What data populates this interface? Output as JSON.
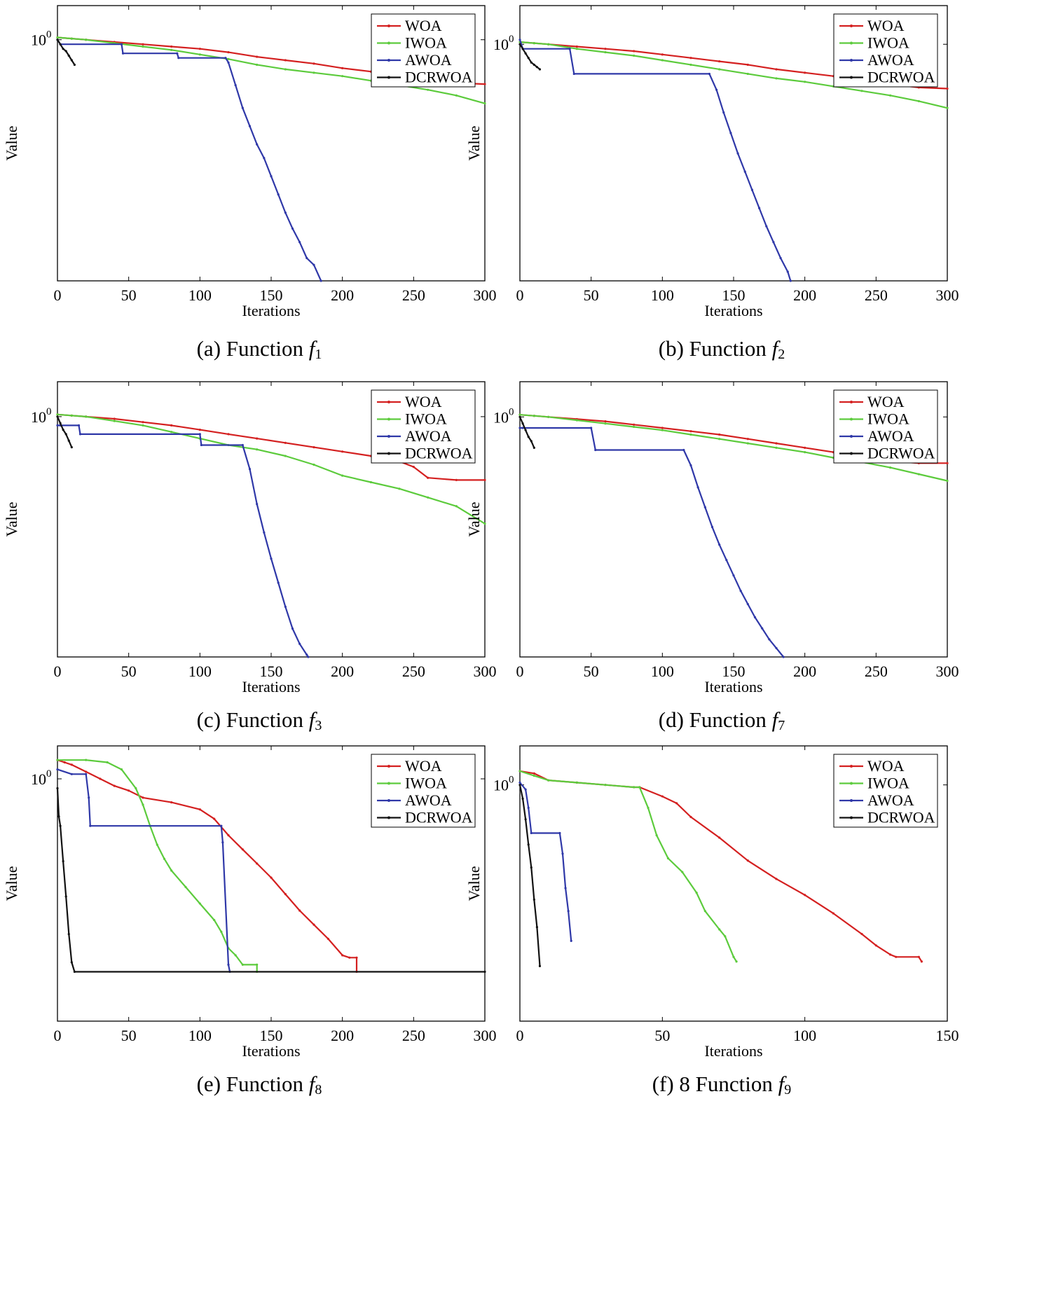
{
  "colors": {
    "WOA": "#d42020",
    "IWOA": "#5ccb3c",
    "AWOA": "#2f38a8",
    "DCRWOA": "#111111"
  },
  "chart_data": [
    {
      "id": "a",
      "type": "line",
      "caption": {
        "prefix": "(a) Function ",
        "f": "f",
        "sub": "1"
      },
      "xlabel": "Iterations",
      "ylabel": "Value",
      "xlim": [
        0,
        300
      ],
      "xticks": [
        0,
        50,
        100,
        150,
        200,
        250,
        300
      ],
      "ylim": [
        -1.06,
        0.15
      ],
      "ytick_label": "10",
      "ytick_exp": "0",
      "series": [
        {
          "name": "WOA",
          "x": [
            0,
            10,
            20,
            40,
            60,
            80,
            100,
            120,
            140,
            160,
            180,
            200,
            220,
            240,
            260,
            280,
            300
          ],
          "y": [
            0.01,
            0.005,
            0.0,
            -0.01,
            -0.02,
            -0.03,
            -0.04,
            -0.055,
            -0.075,
            -0.09,
            -0.105,
            -0.125,
            -0.14,
            -0.155,
            -0.17,
            -0.19,
            -0.195
          ]
        },
        {
          "name": "IWOA",
          "x": [
            0,
            10,
            20,
            40,
            60,
            80,
            100,
            120,
            140,
            160,
            180,
            200,
            220,
            240,
            260,
            280,
            300
          ],
          "y": [
            0.01,
            0.005,
            0.0,
            -0.015,
            -0.03,
            -0.045,
            -0.065,
            -0.085,
            -0.11,
            -0.13,
            -0.145,
            -0.16,
            -0.18,
            -0.2,
            -0.22,
            -0.245,
            -0.28
          ]
        },
        {
          "name": "AWOA",
          "x": [
            0,
            2,
            45,
            46,
            84,
            85,
            118,
            120,
            125,
            130,
            135,
            140,
            145,
            150,
            155,
            160,
            165,
            170,
            175,
            180,
            185
          ],
          "y": [
            0.0,
            -0.02,
            -0.02,
            -0.06,
            -0.06,
            -0.08,
            -0.08,
            -0.1,
            -0.2,
            -0.3,
            -0.38,
            -0.46,
            -0.52,
            -0.6,
            -0.68,
            -0.76,
            -0.83,
            -0.89,
            -0.96,
            -0.99,
            -1.06
          ]
        },
        {
          "name": "DCRWOA",
          "x": [
            0,
            2,
            4,
            6,
            8,
            10,
            12
          ],
          "y": [
            0.0,
            -0.02,
            -0.04,
            -0.05,
            -0.07,
            -0.09,
            -0.11
          ]
        }
      ]
    },
    {
      "id": "b",
      "type": "line",
      "caption": {
        "prefix": "(b) Function ",
        "f": "f",
        "sub": "2"
      },
      "xlabel": "Iterations",
      "ylabel": "Value",
      "xlim": [
        0,
        300
      ],
      "xticks": [
        0,
        50,
        100,
        150,
        200,
        250,
        300
      ],
      "ylim": [
        -1.04,
        0.17
      ],
      "ytick_label": "10",
      "ytick_exp": "0",
      "series": [
        {
          "name": "WOA",
          "x": [
            0,
            10,
            20,
            40,
            60,
            80,
            100,
            120,
            140,
            160,
            180,
            200,
            220,
            240,
            260,
            280,
            300
          ],
          "y": [
            0.01,
            0.005,
            0.0,
            -0.01,
            -0.02,
            -0.03,
            -0.045,
            -0.06,
            -0.075,
            -0.09,
            -0.11,
            -0.125,
            -0.14,
            -0.155,
            -0.175,
            -0.19,
            -0.195
          ]
        },
        {
          "name": "IWOA",
          "x": [
            0,
            10,
            20,
            40,
            60,
            80,
            100,
            120,
            140,
            160,
            180,
            200,
            220,
            240,
            260,
            280,
            300
          ],
          "y": [
            0.01,
            0.005,
            0.0,
            -0.02,
            -0.035,
            -0.05,
            -0.07,
            -0.09,
            -0.11,
            -0.13,
            -0.15,
            -0.165,
            -0.185,
            -0.205,
            -0.225,
            -0.25,
            -0.28
          ]
        },
        {
          "name": "AWOA",
          "x": [
            0,
            2,
            35,
            38,
            133,
            138,
            143,
            148,
            153,
            158,
            163,
            168,
            173,
            178,
            183,
            188,
            190
          ],
          "y": [
            0.02,
            -0.02,
            -0.02,
            -0.13,
            -0.13,
            -0.2,
            -0.3,
            -0.39,
            -0.48,
            -0.56,
            -0.64,
            -0.72,
            -0.8,
            -0.87,
            -0.94,
            -1.0,
            -1.04
          ]
        },
        {
          "name": "DCRWOA",
          "x": [
            0,
            2,
            4,
            6,
            8,
            10,
            12,
            14
          ],
          "y": [
            0.0,
            -0.02,
            -0.04,
            -0.06,
            -0.08,
            -0.09,
            -0.1,
            -0.11
          ]
        }
      ]
    },
    {
      "id": "c",
      "type": "line",
      "caption": {
        "prefix": "(c) Function ",
        "f": "f",
        "sub": "3"
      },
      "xlabel": "Iterations",
      "ylabel": "Value",
      "xlim": [
        0,
        300
      ],
      "xticks": [
        0,
        50,
        100,
        150,
        200,
        250,
        300
      ],
      "ylim": [
        -1.1,
        0.16
      ],
      "ytick_label": "10",
      "ytick_exp": "0",
      "series": [
        {
          "name": "WOA",
          "x": [
            0,
            10,
            20,
            40,
            60,
            80,
            100,
            120,
            140,
            160,
            180,
            200,
            220,
            240,
            250,
            260,
            280,
            300
          ],
          "y": [
            0.01,
            0.005,
            0.0,
            -0.01,
            -0.025,
            -0.04,
            -0.06,
            -0.08,
            -0.1,
            -0.12,
            -0.14,
            -0.16,
            -0.18,
            -0.205,
            -0.23,
            -0.28,
            -0.29,
            -0.29
          ]
        },
        {
          "name": "IWOA",
          "x": [
            0,
            10,
            20,
            40,
            60,
            80,
            100,
            120,
            140,
            160,
            180,
            200,
            220,
            240,
            260,
            280,
            300
          ],
          "y": [
            0.01,
            0.005,
            0.0,
            -0.02,
            -0.04,
            -0.07,
            -0.1,
            -0.13,
            -0.15,
            -0.18,
            -0.22,
            -0.27,
            -0.3,
            -0.33,
            -0.37,
            -0.41,
            -0.49
          ]
        },
        {
          "name": "AWOA",
          "x": [
            0,
            2,
            15,
            16,
            100,
            101,
            130,
            135,
            140,
            145,
            150,
            155,
            160,
            165,
            170,
            175,
            176
          ],
          "y": [
            -0.04,
            -0.04,
            -0.04,
            -0.08,
            -0.08,
            -0.13,
            -0.13,
            -0.24,
            -0.4,
            -0.53,
            -0.65,
            -0.76,
            -0.87,
            -0.97,
            -1.04,
            -1.09,
            -1.1
          ]
        },
        {
          "name": "DCRWOA",
          "x": [
            0,
            2,
            4,
            6,
            8,
            10
          ],
          "y": [
            0.0,
            -0.03,
            -0.06,
            -0.08,
            -0.11,
            -0.14
          ]
        }
      ]
    },
    {
      "id": "d",
      "type": "line",
      "caption": {
        "prefix": "(d) Function ",
        "f": "f",
        "sub": "7"
      },
      "xlabel": "Iterations",
      "ylabel": "Value",
      "xlim": [
        0,
        300
      ],
      "xticks": [
        0,
        50,
        100,
        150,
        200,
        250,
        300
      ],
      "ylim": [
        -1.09,
        0.16
      ],
      "ytick_label": "10",
      "ytick_exp": "0",
      "series": [
        {
          "name": "WOA",
          "x": [
            0,
            10,
            20,
            40,
            60,
            80,
            100,
            120,
            140,
            160,
            180,
            200,
            220,
            240,
            260,
            280,
            300
          ],
          "y": [
            0.01,
            0.005,
            0.0,
            -0.01,
            -0.02,
            -0.035,
            -0.05,
            -0.065,
            -0.08,
            -0.1,
            -0.12,
            -0.14,
            -0.16,
            -0.18,
            -0.2,
            -0.21,
            -0.21
          ]
        },
        {
          "name": "IWOA",
          "x": [
            0,
            10,
            20,
            40,
            60,
            80,
            100,
            120,
            140,
            160,
            180,
            200,
            220,
            240,
            260,
            280,
            300
          ],
          "y": [
            0.01,
            0.005,
            0.0,
            -0.015,
            -0.03,
            -0.045,
            -0.06,
            -0.08,
            -0.1,
            -0.12,
            -0.14,
            -0.16,
            -0.185,
            -0.205,
            -0.23,
            -0.26,
            -0.29
          ]
        },
        {
          "name": "AWOA",
          "x": [
            0,
            2,
            50,
            53,
            115,
            120,
            125,
            130,
            135,
            140,
            145,
            150,
            155,
            160,
            165,
            170,
            175,
            180,
            185
          ],
          "y": [
            -0.05,
            -0.05,
            -0.05,
            -0.15,
            -0.15,
            -0.22,
            -0.32,
            -0.41,
            -0.5,
            -0.58,
            -0.65,
            -0.72,
            -0.79,
            -0.85,
            -0.91,
            -0.96,
            -1.01,
            -1.05,
            -1.09
          ]
        },
        {
          "name": "DCRWOA",
          "x": [
            0,
            2,
            4,
            6,
            8,
            10
          ],
          "y": [
            0.0,
            -0.03,
            -0.06,
            -0.09,
            -0.11,
            -0.14
          ]
        }
      ]
    },
    {
      "id": "e",
      "type": "line",
      "caption": {
        "prefix": "(e) Function ",
        "f": "f",
        "sub": "8"
      },
      "xlabel": "Iterations",
      "ylabel": "Value",
      "xlim": [
        0,
        300
      ],
      "xticks": [
        0,
        50,
        100,
        150,
        200,
        250,
        300
      ],
      "ylim": [
        -1.03,
        0.14
      ],
      "ytick_label": "10",
      "ytick_exp": "0",
      "series": [
        {
          "name": "WOA",
          "x": [
            0,
            5,
            10,
            20,
            30,
            40,
            50,
            60,
            80,
            100,
            110,
            120,
            130,
            140,
            150,
            160,
            170,
            180,
            190,
            200,
            205,
            210,
            210
          ],
          "y": [
            0.08,
            0.07,
            0.06,
            0.03,
            0.0,
            -0.03,
            -0.05,
            -0.08,
            -0.1,
            -0.13,
            -0.17,
            -0.24,
            -0.3,
            -0.36,
            -0.42,
            -0.49,
            -0.56,
            -0.62,
            -0.68,
            -0.75,
            -0.76,
            -0.76,
            -0.82
          ]
        },
        {
          "name": "IWOA",
          "x": [
            0,
            20,
            35,
            45,
            55,
            60,
            65,
            70,
            75,
            80,
            90,
            100,
            110,
            115,
            120,
            125,
            130,
            140,
            140
          ],
          "y": [
            0.08,
            0.08,
            0.07,
            0.04,
            -0.04,
            -0.11,
            -0.2,
            -0.28,
            -0.34,
            -0.39,
            -0.46,
            -0.53,
            -0.6,
            -0.65,
            -0.72,
            -0.75,
            -0.79,
            -0.79,
            -0.82
          ]
        },
        {
          "name": "AWOA",
          "x": [
            0,
            10,
            20,
            22,
            23,
            115,
            116,
            120,
            121
          ],
          "y": [
            0.04,
            0.02,
            0.02,
            -0.08,
            -0.2,
            -0.2,
            -0.27,
            -0.79,
            -0.82
          ]
        },
        {
          "name": "DCRWOA",
          "x": [
            0,
            1,
            2,
            4,
            6,
            8,
            10,
            12,
            300
          ],
          "y": [
            -0.04,
            -0.16,
            -0.2,
            -0.35,
            -0.5,
            -0.66,
            -0.78,
            -0.82,
            -0.82
          ]
        }
      ]
    },
    {
      "id": "f",
      "type": "line",
      "caption": {
        "prefix": "(f) 8 Function ",
        "f": "f",
        "sub": "9"
      },
      "xlabel": "Iterations",
      "ylabel": "Value",
      "xlim": [
        0,
        150
      ],
      "xticks": [
        0,
        50,
        100,
        150
      ],
      "ylim": [
        -1.03,
        0.17
      ],
      "ytick_label": "10",
      "ytick_exp": "0",
      "series": [
        {
          "name": "WOA",
          "x": [
            0,
            5,
            10,
            20,
            30,
            40,
            42,
            50,
            55,
            60,
            70,
            80,
            90,
            100,
            110,
            120,
            125,
            130,
            132,
            140,
            141
          ],
          "y": [
            0.06,
            0.05,
            0.02,
            0.01,
            0.0,
            -0.01,
            -0.01,
            -0.05,
            -0.08,
            -0.14,
            -0.23,
            -0.33,
            -0.41,
            -0.48,
            -0.56,
            -0.65,
            -0.7,
            -0.74,
            -0.75,
            -0.75,
            -0.77
          ]
        },
        {
          "name": "IWOA",
          "x": [
            0,
            5,
            10,
            20,
            30,
            40,
            42,
            45,
            48,
            52,
            57,
            62,
            65,
            70,
            72,
            75,
            76
          ],
          "y": [
            0.06,
            0.04,
            0.02,
            0.01,
            0.0,
            -0.01,
            -0.01,
            -0.1,
            -0.22,
            -0.32,
            -0.38,
            -0.47,
            -0.55,
            -0.63,
            -0.66,
            -0.75,
            -0.77
          ]
        },
        {
          "name": "AWOA",
          "x": [
            0,
            2,
            3,
            4,
            14,
            15,
            16,
            17,
            18
          ],
          "y": [
            0.01,
            -0.02,
            -0.1,
            -0.21,
            -0.21,
            -0.3,
            -0.45,
            -0.55,
            -0.68
          ]
        },
        {
          "name": "DCRWOA",
          "x": [
            0,
            1,
            2,
            3,
            4,
            5,
            6,
            7
          ],
          "y": [
            0.0,
            -0.06,
            -0.15,
            -0.26,
            -0.36,
            -0.5,
            -0.62,
            -0.79
          ]
        }
      ]
    }
  ]
}
